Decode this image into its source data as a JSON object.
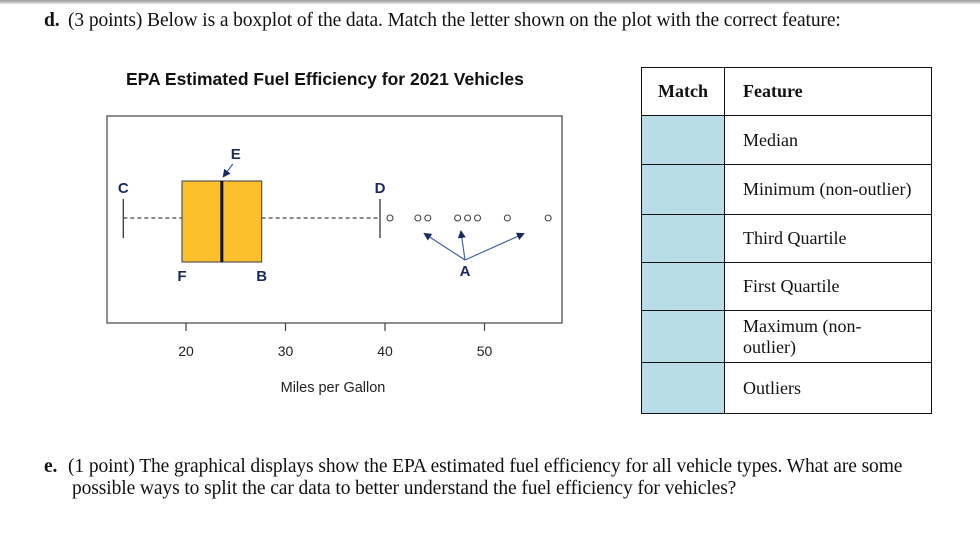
{
  "question_d": {
    "number": "d.",
    "text": "(3 points) Below is a boxplot of the data. Match the letter shown on the plot with the correct feature:"
  },
  "question_e": {
    "number": "e.",
    "line1": "(1 point) The graphical displays show the EPA estimated fuel efficiency for all vehicle types. What are some",
    "line2": "possible ways to split the car data to better understand the fuel efficiency for vehicles?"
  },
  "match_table": {
    "headers": {
      "match": "Match",
      "feature": "Feature"
    },
    "rows": [
      {
        "match": "",
        "feature": "Median"
      },
      {
        "match": "",
        "feature": "Minimum (non-outlier)"
      },
      {
        "match": "",
        "feature": "Third Quartile"
      },
      {
        "match": "",
        "feature": "First Quartile"
      },
      {
        "match": "",
        "feature": "Maximum (non-outlier)",
        "feature_line1": "Maximum (non-",
        "feature_line2": "outlier)"
      },
      {
        "match": "",
        "feature": "Outliers"
      }
    ],
    "colors": {
      "match_cell_bg": "#b8dde8",
      "border": "#111111"
    }
  },
  "chart_data": {
    "type": "boxplot",
    "title": "EPA Estimated Fuel Efficiency for 2021 Vehicles",
    "xlabel": "Miles per Gallon",
    "ylabel": "",
    "xlim": [
      12,
      58
    ],
    "xticks": [
      20,
      30,
      40,
      50
    ],
    "xtick_labels": [
      "20",
      "30",
      "40",
      "50"
    ],
    "orientation": "horizontal",
    "box": {
      "min_whisker": 13.7,
      "q1": 19.6,
      "median": 23.6,
      "q3": 27.6,
      "max_whisker": 39.5,
      "outliers": [
        40.5,
        43.3,
        44.3,
        47.3,
        48.3,
        49.3,
        52.3,
        56.4
      ]
    },
    "annotations": [
      {
        "letter": "A",
        "points_to": "outliers"
      },
      {
        "letter": "B",
        "points_to": "q3"
      },
      {
        "letter": "C",
        "points_to": "min_whisker"
      },
      {
        "letter": "D",
        "points_to": "max_whisker"
      },
      {
        "letter": "E",
        "points_to": "median"
      },
      {
        "letter": "F",
        "points_to": "q1"
      }
    ],
    "colors": {
      "box_fill": "#fdbf2a",
      "label_color": "#1b2a5c",
      "arrow_color": "#3b5aa0"
    },
    "grid": false,
    "legend": null
  }
}
